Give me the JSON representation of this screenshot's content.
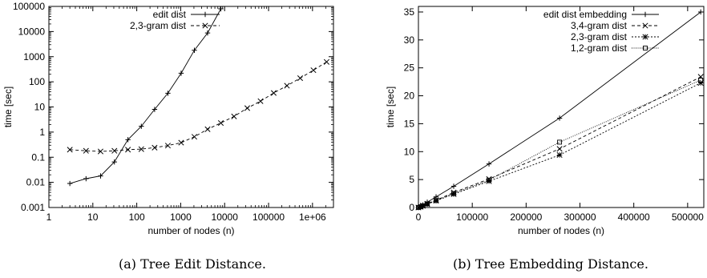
{
  "figure": {
    "captions": [
      "(a)  Tree Edit Distance.",
      "(b)  Tree Embedding Distance."
    ]
  },
  "chart_data": [
    {
      "type": "line",
      "xlabel": "number of nodes (n)",
      "ylabel": "time [sec]",
      "x_scale": "log",
      "y_scale": "log",
      "xlim": [
        1,
        3000000
      ],
      "ylim": [
        0.001,
        100000
      ],
      "x_ticks": [
        1,
        10,
        100,
        1000,
        10000,
        100000,
        1000000
      ],
      "x_tick_labels": [
        "1",
        "10",
        "100",
        "1000",
        "10000",
        "100000",
        "1e+06"
      ],
      "y_ticks": [
        0.001,
        0.01,
        0.1,
        1,
        10,
        100,
        1000,
        10000,
        100000
      ],
      "y_tick_labels": [
        "0.001",
        "0.01",
        "0.1",
        "1",
        "10",
        "100",
        "1000",
        "10000",
        "100000"
      ],
      "legend_position": "top-left",
      "grid": false,
      "series": [
        {
          "name": "edit dist",
          "marker": "plus",
          "dash": "solid",
          "x": [
            3,
            7,
            15,
            31,
            63,
            127,
            255,
            511,
            1023,
            2047,
            4095,
            8191
          ],
          "y": [
            0.009,
            0.014,
            0.018,
            0.065,
            0.5,
            1.7,
            8,
            35,
            220,
            1800,
            8800,
            80000
          ]
        },
        {
          "name": "2,3-gram dist",
          "marker": "cross",
          "dash": "dashed",
          "x": [
            3,
            7,
            15,
            31,
            63,
            127,
            255,
            511,
            1023,
            2047,
            4095,
            8191,
            16383,
            32767,
            65535,
            131071,
            262143,
            524287,
            1048575,
            2097151
          ],
          "y": [
            0.2,
            0.18,
            0.17,
            0.18,
            0.2,
            0.21,
            0.24,
            0.29,
            0.38,
            0.65,
            1.3,
            2.3,
            4.2,
            9,
            17,
            36,
            70,
            140,
            290,
            620
          ]
        }
      ]
    },
    {
      "type": "line",
      "xlabel": "number of nodes (n)",
      "ylabel": "time [sec]",
      "x_scale": "linear",
      "y_scale": "linear",
      "xlim": [
        0,
        530000
      ],
      "ylim": [
        0,
        36
      ],
      "x_ticks": [
        0,
        100000,
        200000,
        300000,
        400000,
        500000
      ],
      "x_tick_labels": [
        "0",
        "100000",
        "200000",
        "300000",
        "400000",
        "500000"
      ],
      "y_ticks": [
        0,
        5,
        10,
        15,
        20,
        25,
        30,
        35
      ],
      "y_tick_labels": [
        "0",
        "5",
        "10",
        "15",
        "20",
        "25",
        "30",
        "35"
      ],
      "legend_position": "top-left",
      "grid": false,
      "series": [
        {
          "name": "edit dist embedding",
          "marker": "plus",
          "dash": "solid",
          "x": [
            0,
            4096,
            8192,
            16384,
            32768,
            65536,
            131072,
            262144,
            524288
          ],
          "y": [
            0,
            0.2,
            0.45,
            0.95,
            1.9,
            3.8,
            7.8,
            16.0,
            35.0
          ]
        },
        {
          "name": "3,4-gram dist",
          "marker": "cross",
          "dash": "dashed",
          "x": [
            0,
            4096,
            8192,
            16384,
            32768,
            65536,
            131072,
            262144,
            524288
          ],
          "y": [
            0,
            0.15,
            0.35,
            0.7,
            1.3,
            2.7,
            5.1,
            10.5,
            23.4
          ]
        },
        {
          "name": "2,3-gram dist",
          "marker": "star",
          "dash": "dotted",
          "x": [
            0,
            4096,
            8192,
            16384,
            32768,
            65536,
            131072,
            262144,
            524288
          ],
          "y": [
            0,
            0.12,
            0.3,
            0.6,
            1.2,
            2.4,
            4.7,
            9.4,
            22.3
          ]
        },
        {
          "name": "1,2-gram dist",
          "marker": "square",
          "dash": "dotted-fine",
          "x": [
            0,
            4096,
            8192,
            16384,
            32768,
            65536,
            131072,
            262144,
            524288
          ],
          "y": [
            0,
            0.14,
            0.32,
            0.65,
            1.25,
            2.5,
            4.9,
            11.7,
            22.8
          ]
        }
      ]
    }
  ]
}
